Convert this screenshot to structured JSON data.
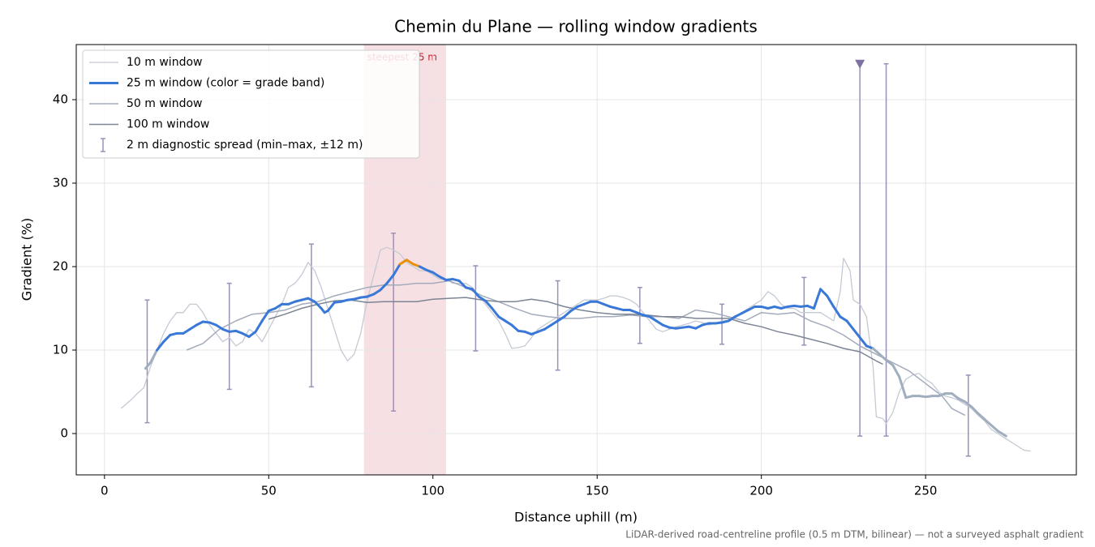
{
  "chart_data": {
    "type": "line",
    "title": "Chemin du Plane — rolling window gradients",
    "xlabel": "Distance uphill (m)",
    "ylabel": "Gradient (%)",
    "footnote": "LiDAR-derived road-centreline profile (0.5 m DTM, bilinear) — not a surveyed asphalt gradient",
    "xlim": [
      -8.6,
      295.9
    ],
    "ylim": [
      -4.95,
      46.6
    ],
    "xticks": [
      0,
      50,
      100,
      150,
      200,
      250
    ],
    "yticks": [
      0,
      10,
      20,
      30,
      40
    ],
    "grid": true,
    "legend": "upper left",
    "highlight": {
      "xlim": [
        79,
        104
      ],
      "label": "steepest 25 m",
      "color": "#d9707e"
    },
    "series": [
      {
        "name": "10 m window",
        "color": "#c4cad3",
        "x": [
          5,
          8,
          10,
          12,
          14,
          16,
          18,
          20,
          22,
          24,
          26,
          28,
          30,
          32,
          34,
          36,
          38,
          40,
          42,
          44,
          46,
          48,
          50,
          52,
          54,
          56,
          58,
          60,
          62,
          64,
          66,
          68,
          70,
          72,
          74,
          76,
          78,
          80,
          82,
          84,
          86,
          88,
          90,
          92,
          94,
          96,
          98,
          100,
          102,
          104,
          106,
          108,
          110,
          112,
          114,
          116,
          118,
          120,
          122,
          124,
          126,
          128,
          130,
          132,
          134,
          136,
          138,
          140,
          142,
          144,
          146,
          148,
          150,
          152,
          154,
          156,
          158,
          160,
          162,
          164,
          166,
          168,
          170,
          172,
          174,
          176,
          178,
          180,
          182,
          184,
          186,
          188,
          190,
          192,
          194,
          196,
          198,
          200,
          202,
          204,
          206,
          208,
          210,
          212,
          214,
          216,
          218,
          220,
          222,
          224,
          225,
          227,
          228,
          230,
          232,
          234,
          235,
          237,
          238,
          240,
          242,
          244,
          246,
          248,
          250,
          252,
          254,
          256,
          258,
          260,
          262,
          264,
          266,
          268,
          270,
          272,
          274,
          276,
          278,
          280,
          282
        ],
        "values": [
          3,
          4,
          4.8,
          5.5,
          8,
          10,
          12,
          13.5,
          14.5,
          14.5,
          15.5,
          15.5,
          14.5,
          13,
          12,
          11,
          11.5,
          10.5,
          11,
          12.5,
          12,
          11,
          12.5,
          14,
          15.5,
          17.5,
          18,
          19,
          20.5,
          19.5,
          17.5,
          15,
          12.5,
          10,
          8.7,
          9.5,
          12,
          16,
          19,
          22,
          22.3,
          22,
          21.5,
          20.5,
          20,
          19.5,
          19.5,
          19,
          18.5,
          18.5,
          18,
          18,
          18,
          17.5,
          16.5,
          15.5,
          14.5,
          13.5,
          12,
          10.2,
          10.3,
          10.5,
          11.5,
          12.5,
          13,
          13.5,
          14,
          14.5,
          15,
          15.5,
          16,
          16,
          16,
          16.2,
          16.5,
          16.5,
          16.3,
          16,
          15.5,
          14.5,
          13.5,
          12.5,
          12.2,
          12.5,
          12.8,
          13,
          13.2,
          13.5,
          13.3,
          13,
          13.2,
          13.5,
          13.5,
          14,
          14.5,
          15,
          15.5,
          16,
          17,
          16.5,
          15.5,
          15,
          15,
          14.5,
          14.5,
          14.5,
          14.5,
          14,
          13.5,
          17,
          21,
          19.5,
          16,
          15.5,
          14,
          8,
          2,
          1.8,
          1.2,
          2.5,
          5,
          6.5,
          7,
          7.2,
          6.5,
          6,
          5,
          4.5,
          4.3,
          4,
          3.5,
          3,
          2.2,
          1.5,
          0.5,
          0,
          -0.5,
          -1,
          -1.5,
          -2,
          -2.1
        ]
      },
      {
        "name": "25 m window (color = grade band)",
        "color": "#3a78d8",
        "grade_bands": [
          {
            "below": 10,
            "color": "#a0aec0"
          },
          {
            "below": 20,
            "color": "#3a78d8"
          },
          {
            "color": "#e8900a"
          }
        ],
        "x": [
          12.5,
          14,
          16,
          18,
          20,
          22,
          24,
          26,
          28,
          30,
          32,
          34,
          36,
          38,
          40,
          42,
          44,
          46,
          48,
          50,
          52,
          54,
          56,
          58,
          60,
          62,
          64,
          66,
          67,
          68,
          70,
          72,
          74,
          76,
          78,
          80,
          82,
          84,
          86,
          88,
          90,
          92,
          94,
          96,
          98,
          100,
          102,
          104,
          106,
          108,
          110,
          112,
          114,
          116,
          118,
          120,
          122,
          124,
          126,
          128,
          130,
          132,
          134,
          136,
          138,
          140,
          142,
          144,
          146,
          148,
          150,
          152,
          154,
          156,
          158,
          160,
          162,
          164,
          166,
          168,
          170,
          172,
          174,
          176,
          178,
          180,
          182,
          184,
          186,
          188,
          190,
          192,
          194,
          196,
          198,
          200,
          202,
          204,
          206,
          208,
          210,
          212,
          214,
          216,
          218,
          220,
          222,
          224,
          226,
          228,
          230,
          232,
          234,
          236,
          238,
          240,
          242,
          244,
          246,
          248,
          250,
          252,
          254,
          256,
          258,
          260,
          262,
          264,
          266,
          268,
          270,
          272,
          274.5
        ],
        "values": [
          7.8,
          8.5,
          10,
          11,
          11.8,
          12,
          12,
          12.5,
          13,
          13.4,
          13.3,
          13,
          12.5,
          12.2,
          12.3,
          12,
          11.6,
          12.2,
          13.5,
          14.7,
          15,
          15.5,
          15.5,
          15.8,
          16,
          16.2,
          15.8,
          15,
          14.5,
          14.7,
          15.7,
          15.8,
          16,
          16.1,
          16.3,
          16.4,
          16.7,
          17.2,
          18,
          19,
          20.3,
          20.8,
          20.3,
          20,
          19.6,
          19.3,
          18.8,
          18.4,
          18.5,
          18.3,
          17.5,
          17.3,
          16.4,
          15.9,
          15,
          14,
          13.5,
          13,
          12.3,
          12.2,
          11.9,
          12.2,
          12.5,
          13,
          13.5,
          14,
          14.7,
          15.2,
          15.5,
          15.8,
          15.8,
          15.5,
          15.2,
          15,
          14.8,
          14.8,
          14.5,
          14.2,
          14,
          13.5,
          13,
          12.7,
          12.6,
          12.7,
          12.8,
          12.6,
          13,
          13.2,
          13.2,
          13.3,
          13.5,
          14,
          14.4,
          14.8,
          15.2,
          15.2,
          15,
          15.2,
          15,
          15.2,
          15.3,
          15.2,
          15.3,
          15,
          17.3,
          16.5,
          15.2,
          14,
          13.5,
          12.5,
          11.5,
          10.5,
          10.2,
          9.5,
          8.8,
          8.2,
          6.8,
          4.3,
          4.5,
          4.5,
          4.4,
          4.5,
          4.5,
          4.8,
          4.8,
          4.2,
          3.8,
          3.2,
          2.4,
          1.7,
          1,
          0.3,
          -0.3
        ]
      },
      {
        "name": "50 m window",
        "color": "#a3abbb",
        "x": [
          25,
          30,
          35,
          40,
          45,
          50,
          55,
          60,
          65,
          70,
          75,
          80,
          85,
          90,
          95,
          100,
          105,
          110,
          115,
          120,
          125,
          130,
          135,
          140,
          145,
          150,
          155,
          160,
          165,
          170,
          175,
          180,
          185,
          190,
          195,
          200,
          205,
          210,
          215,
          220,
          225,
          230,
          235,
          240,
          245,
          250,
          255,
          258,
          262
        ],
        "values": [
          10,
          10.8,
          12.5,
          13.5,
          14.3,
          14.5,
          14.8,
          15.5,
          15.8,
          16.5,
          17,
          17.5,
          17.8,
          17.8,
          18,
          18,
          18.3,
          17.5,
          16.5,
          15.8,
          15,
          14.3,
          14,
          13.8,
          13.8,
          14,
          14,
          14.2,
          14,
          14,
          13.8,
          14.8,
          14.5,
          14,
          13.5,
          14.5,
          14.3,
          14.5,
          13.5,
          12.8,
          11.8,
          10.5,
          9.5,
          8.5,
          7.5,
          6,
          4.5,
          3,
          2.2
        ]
      },
      {
        "name": "100 m window",
        "color": "#7d8595",
        "x": [
          50,
          55,
          60,
          65,
          70,
          75,
          80,
          85,
          90,
          95,
          100,
          105,
          110,
          115,
          120,
          125,
          130,
          135,
          140,
          145,
          150,
          155,
          160,
          165,
          170,
          175,
          180,
          185,
          190,
          195,
          200,
          205,
          210,
          215,
          220,
          225,
          230,
          235,
          237
        ],
        "values": [
          13.7,
          14.3,
          15,
          15.5,
          15.9,
          16,
          15.7,
          15.8,
          15.8,
          15.8,
          16.1,
          16.2,
          16.3,
          16,
          15.8,
          15.8,
          16.1,
          15.8,
          15.2,
          14.8,
          14.5,
          14.3,
          14.3,
          14.2,
          14,
          14,
          13.8,
          13.8,
          13.8,
          13.2,
          12.8,
          12.2,
          11.8,
          11.3,
          10.8,
          10.2,
          9.8,
          8.7,
          8.3
        ]
      }
    ],
    "spread": {
      "name": "2 m diagnostic spread (min–max, ±12 m)",
      "color": "#9a90b8",
      "x": [
        13,
        38,
        63,
        88,
        113,
        138,
        163,
        188,
        213,
        230,
        238,
        263
      ],
      "min": [
        1.3,
        5.3,
        5.6,
        2.7,
        9.9,
        7.6,
        10.8,
        10.7,
        10.6,
        -0.3,
        -0.3,
        -2.7
      ],
      "max": [
        16,
        18,
        22.7,
        24,
        20.1,
        18.3,
        17.5,
        15.5,
        18.7,
        44.3,
        44.3,
        7
      ],
      "marker": {
        "index": 9,
        "color": "#8070a0"
      }
    }
  }
}
